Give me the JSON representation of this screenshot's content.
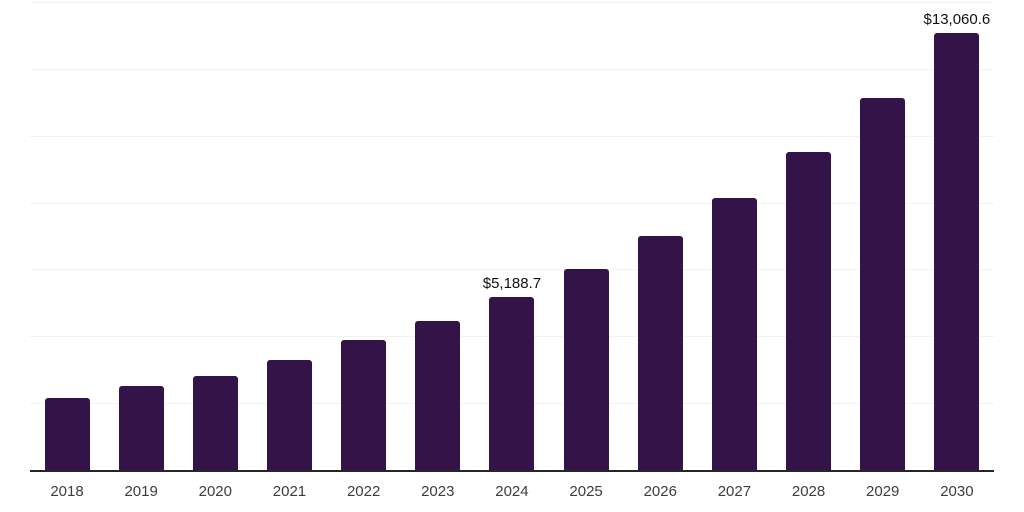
{
  "chart_data": {
    "type": "bar",
    "title": "",
    "xlabel": "",
    "ylabel": "",
    "categories": [
      "2018",
      "2019",
      "2020",
      "2021",
      "2022",
      "2023",
      "2024",
      "2025",
      "2026",
      "2027",
      "2028",
      "2029",
      "2030"
    ],
    "values": [
      2150,
      2515,
      2815,
      3300,
      3880,
      4455,
      5188.7,
      6000,
      7000,
      8130,
      9520,
      11130,
      13060.6
    ],
    "data_labels": {
      "2024": "$5,188.7",
      "2030": "$13,060.6"
    },
    "ylim": [
      0,
      14000
    ],
    "gridline_interval": 2000,
    "grid": true,
    "legend": "none",
    "colors": {
      "bar": "#341348",
      "gridline": "#f2f2f2",
      "axis_line": "#262626",
      "x_tick_label": "#3d3d3d",
      "data_label": "#111111",
      "background": "#ffffff"
    }
  }
}
